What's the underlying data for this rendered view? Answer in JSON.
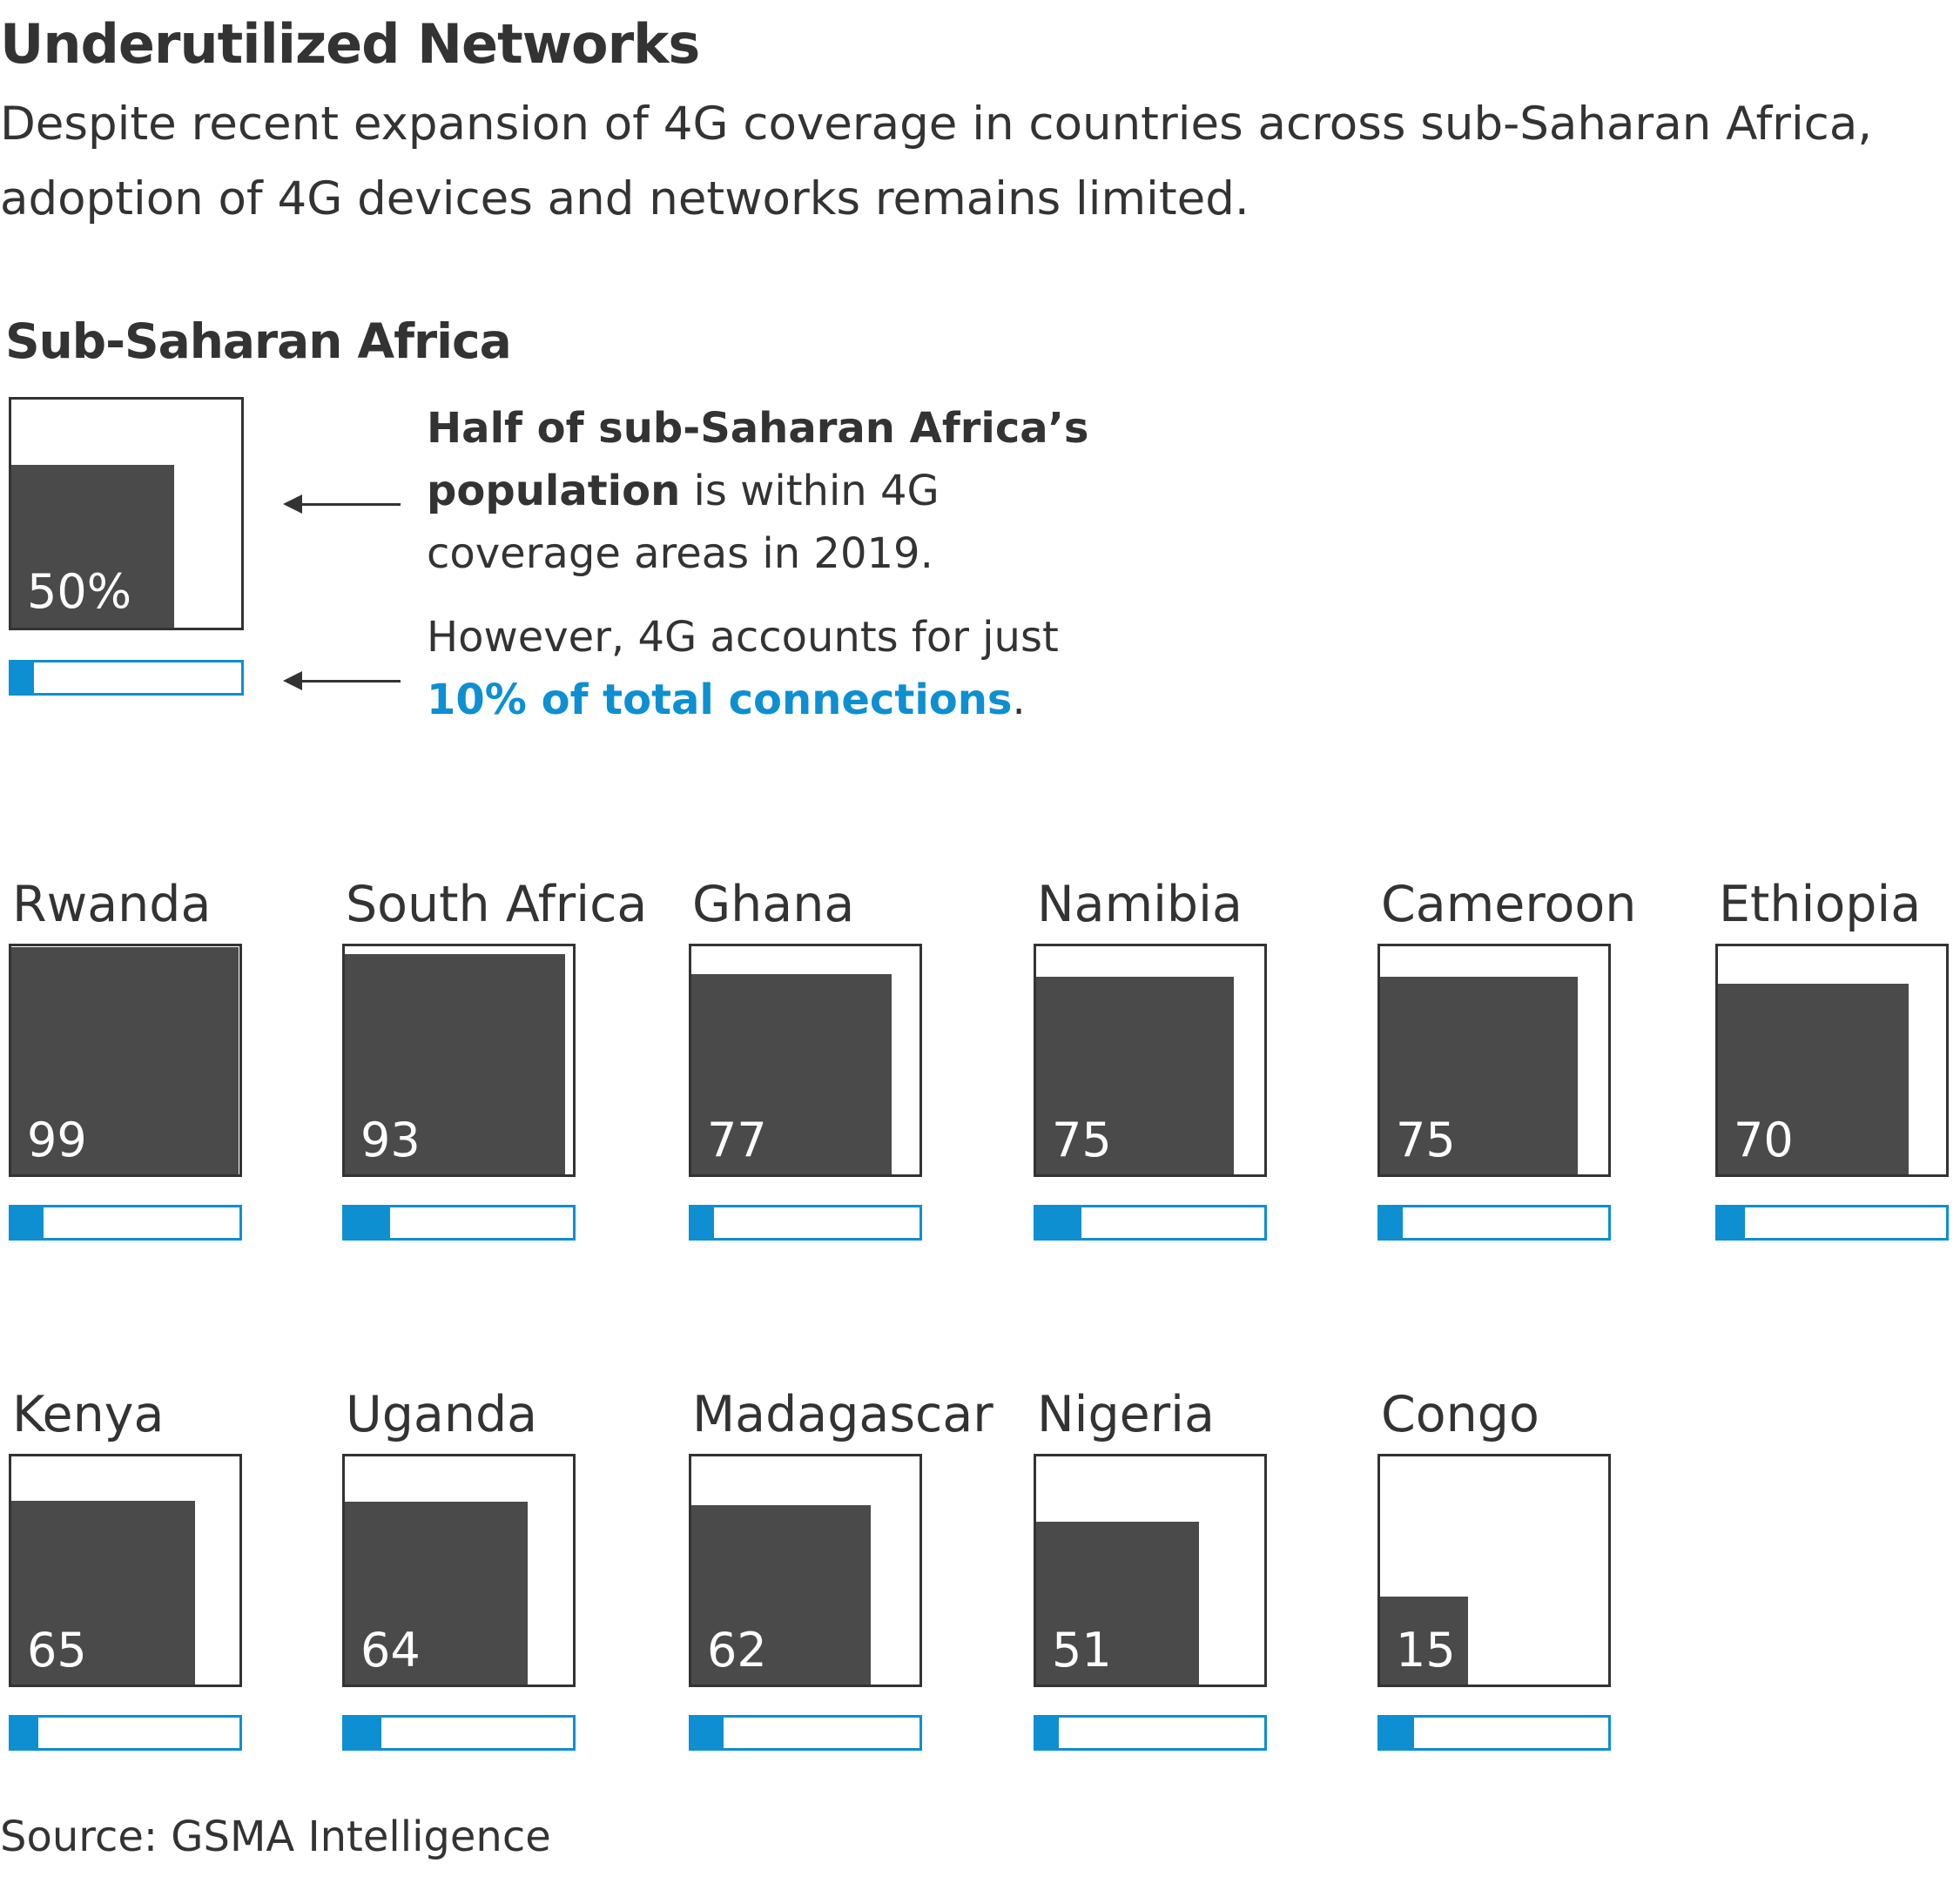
{
  "title": "Underutilized Networks",
  "subtitle": "Despite recent expansion of 4G coverage in countries across sub-Saharan Africa, adoption of 4G devices and networks remains limited.",
  "region": {
    "name": "Sub-Saharan Africa",
    "coverage_pct": 50,
    "coverage_label": "50%",
    "connections_pct": 10,
    "annotation_coverage": {
      "bold": "Half of sub-Saharan Africa’s population",
      "rest": " is within 4G coverage areas in 2019."
    },
    "annotation_connections": {
      "lead": "However, 4G accounts for just ",
      "highlight": "10% of total connections",
      "tail": "."
    }
  },
  "colors": {
    "coverage_fill": "#4a4a4a",
    "connections_fill": "#0d8fd2",
    "text": "#333333"
  },
  "chart_data": {
    "type": "bar",
    "categories": [
      "Rwanda",
      "South Africa",
      "Ghana",
      "Namibia",
      "Cameroon",
      "Ethiopia",
      "Kenya",
      "Uganda",
      "Madagascar",
      "Nigeria",
      "Congo"
    ],
    "series": [
      {
        "values": [
          99,
          93,
          77,
          75,
          75,
          70,
          65,
          64,
          62,
          51,
          15
        ]
      },
      {
        "values": [
          14,
          20,
          10,
          20,
          10,
          12,
          12,
          16,
          14,
          10,
          15
        ]
      }
    ],
    "ylim": [
      0,
      100
    ]
  },
  "source": "Source: GSMA Intelligence"
}
